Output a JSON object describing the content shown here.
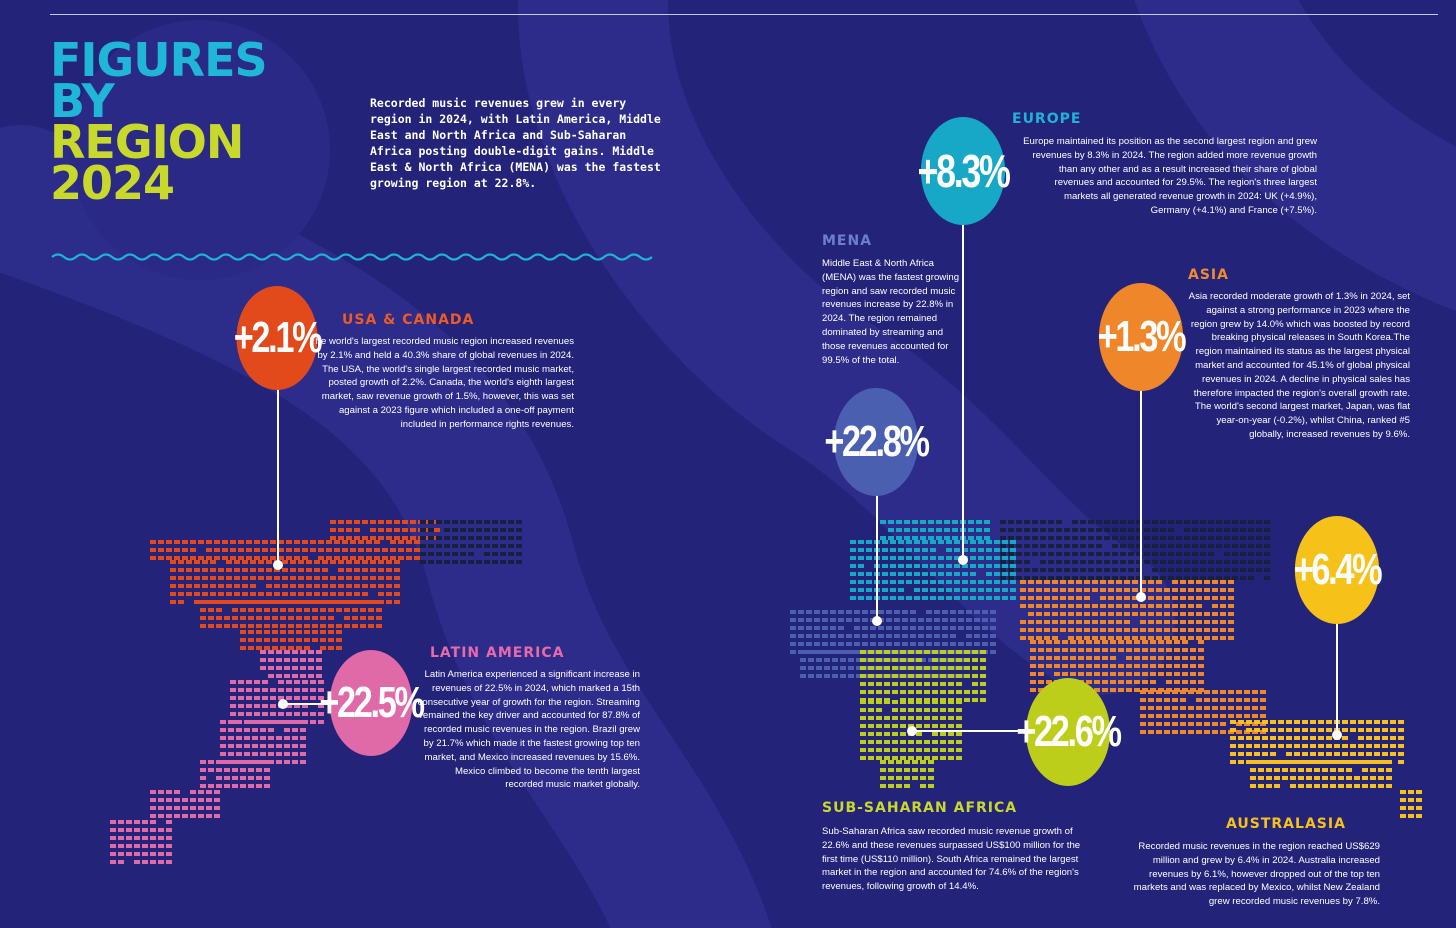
{
  "title": {
    "line1": "FIGURES",
    "line2": "BY",
    "line3": "REGION",
    "line4": "2024"
  },
  "intro": "Recorded music revenues grew in every region in 2024, with Latin America, Middle East and North Africa and Sub-Saharan Africa posting double-digit gains. Middle East & North Africa (MENA) was the fastest growing region at 22.8%.",
  "colors": {
    "background": "#24237a",
    "usa_canada": "#e24a1c",
    "latin_america": "#e06aa8",
    "europe": "#17a8c8",
    "mena": "#4a5fb0",
    "asia": "#f0862a",
    "sub_saharan_africa": "#bccd1a",
    "australasia": "#f6c21a",
    "title_blue": "#20b6d8",
    "title_green": "#c9d92b"
  },
  "regions": {
    "usa_canada": {
      "name": "USA & CANADA",
      "growth": "+2.1%",
      "text": "The world's largest recorded music region increased revenues by 2.1% and held a 40.3% share of global revenues in 2024. The USA, the world's single largest recorded music market, posted growth of 2.2%. Canada, the world's eighth largest market, saw revenue growth of 1.5%, however, this was set against a 2023 figure which included a one-off payment included in performance rights revenues."
    },
    "latin_america": {
      "name": "LATIN AMERICA",
      "growth": "+22.5%",
      "text": "Latin America experienced a significant increase in revenues of 22.5% in 2024, which marked a 15th consecutive year of growth for the region. Streaming remained the key driver and accounted for 87.8% of recorded music revenues in the region. Brazil grew by 21.7% which made it the fastest growing top ten market, and Mexico increased revenues by 15.6%. Mexico climbed to become the tenth largest recorded music market globally."
    },
    "europe": {
      "name": "EUROPE",
      "growth": "+8.3%",
      "text": "Europe maintained its position as the second largest region and grew revenues by 8.3% in 2024. The region added more revenue growth than any other and as a result increased their share of global revenues and accounted for 29.5%. The region's three largest markets all generated revenue growth in 2024: UK (+4.9%), Germany (+4.1%) and France (+7.5%)."
    },
    "mena": {
      "name": "MENA",
      "growth": "+22.8%",
      "text": "Middle East & North Africa (MENA) was the fastest growing region and saw recorded music revenues increase by 22.8% in 2024. The region remained dominated by streaming and those revenues accounted for 99.5% of the total."
    },
    "asia": {
      "name": "ASIA",
      "growth": "+1.3%",
      "text": "Asia recorded moderate growth of 1.3% in 2024, set against a strong performance in 2023 where the region grew by 14.0% which was boosted by record breaking physical releases in South Korea.The region maintained its status as the largest physical market and accounted for 45.1% of global physical revenues in 2024. A decline in physical sales has therefore impacted the region's overall growth rate. The world's second largest market, Japan, was flat year-on-year (-0.2%), whilst China, ranked #5 globally, increased revenues by 9.6%."
    },
    "sub_saharan_africa": {
      "name": "SUB-SAHARAN AFRICA",
      "growth": "+22.6%",
      "text": "Sub-Saharan Africa saw recorded music revenue growth of 22.6% and these revenues surpassed US$100 million for the first time (US$110 million). South Africa remained the largest market in the region and accounted for 74.6% of the region's revenues, following growth of 14.4%."
    },
    "australasia": {
      "name": "AUSTRALASIA",
      "growth": "+6.4%",
      "text": "Recorded music revenues in the region reached US$629 million and grew by 6.4% in 2024. Australia increased revenues by 6.1%, however dropped out of the top ten markets and was replaced by Mexico, whilst New Zealand grew recorded music revenues by 7.8%."
    }
  }
}
